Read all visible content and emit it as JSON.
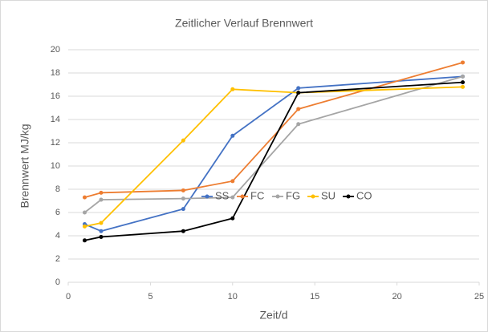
{
  "chart_data": {
    "type": "line",
    "title": "Zeitlicher Verlauf Brennwert",
    "xlabel": "Zeit/d",
    "ylabel": "Brennwert MJ/kg",
    "x": [
      1,
      2,
      7,
      10,
      14,
      24
    ],
    "series": [
      {
        "name": "SS",
        "color": "#4472c4",
        "values": [
          5.0,
          4.4,
          6.3,
          12.6,
          16.7,
          17.7
        ]
      },
      {
        "name": "FC",
        "color": "#ed7d31",
        "values": [
          7.3,
          7.7,
          7.9,
          8.7,
          14.9,
          18.9
        ]
      },
      {
        "name": "FG",
        "color": "#a5a5a5",
        "values": [
          6.0,
          7.1,
          7.2,
          7.3,
          13.6,
          17.7
        ]
      },
      {
        "name": "SU",
        "color": "#ffc000",
        "values": [
          4.8,
          5.1,
          12.2,
          16.6,
          16.3,
          16.8
        ]
      },
      {
        "name": "CO",
        "color": "#000000",
        "values": [
          3.6,
          3.9,
          4.4,
          5.5,
          16.3,
          17.2
        ]
      }
    ],
    "xlim": [
      0,
      25
    ],
    "xticks": [
      0,
      5,
      10,
      15,
      20,
      25
    ],
    "ylim": [
      0,
      20
    ],
    "yticks": [
      0,
      2,
      4,
      6,
      8,
      10,
      12,
      14,
      16,
      18,
      20
    ],
    "grid": true,
    "legend": "center"
  }
}
